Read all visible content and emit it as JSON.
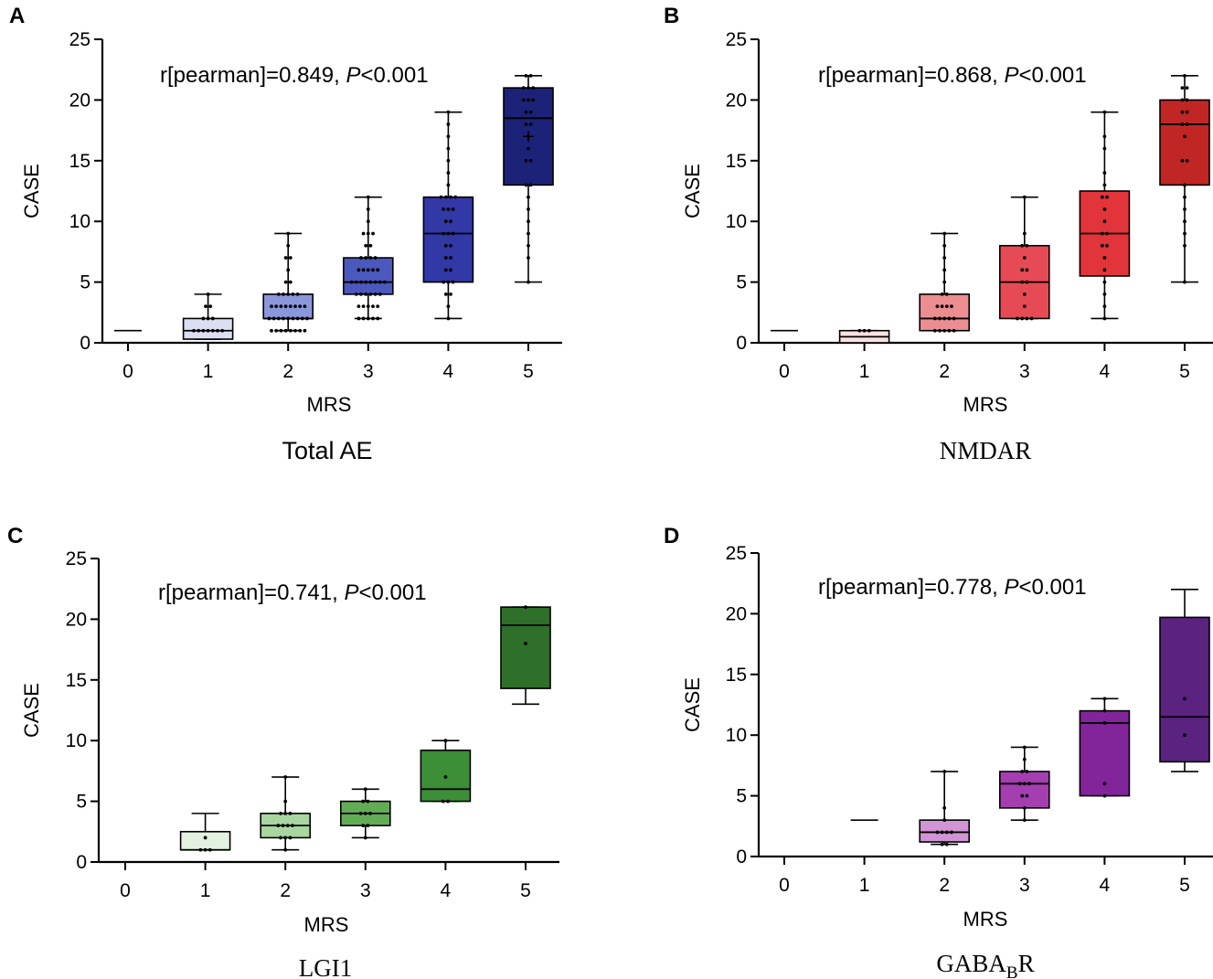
{
  "chart_data": [
    {
      "panel": "A",
      "type": "box",
      "title": "Total AE",
      "xlabel": "MRS",
      "ylabel": "CASE",
      "ylim": [
        0,
        25
      ],
      "yticks": [
        0,
        5,
        10,
        15,
        20,
        25
      ],
      "categories": [
        "0",
        "1",
        "2",
        "3",
        "4",
        "5"
      ],
      "annotation": {
        "r_label": "r[pearman]=0.849,",
        "p_symbol": "P",
        "p_value": "<0.001"
      },
      "boxes": [
        {
          "category": "0",
          "min": 1,
          "q1": 1,
          "median": 1,
          "q3": 1,
          "max": 1,
          "points": [],
          "mean": null
        },
        {
          "category": "1",
          "min": 0.3,
          "q1": 0.3,
          "median": 1,
          "q3": 2,
          "max": 4,
          "points": [
            1,
            1,
            1,
            1,
            1,
            1,
            1,
            2,
            2,
            2,
            3,
            3,
            4
          ],
          "mean": null
        },
        {
          "category": "2",
          "min": 1,
          "q1": 2,
          "median": 2,
          "q3": 4,
          "max": 9,
          "points": [
            1,
            1,
            1,
            1,
            1,
            1,
            1,
            1,
            2,
            2,
            2,
            2,
            2,
            2,
            2,
            2,
            2,
            3,
            3,
            3,
            3,
            3,
            3,
            3,
            3,
            4,
            4,
            4,
            4,
            4,
            5,
            5,
            6,
            7,
            7,
            8,
            9
          ],
          "mean": null
        },
        {
          "category": "3",
          "min": 2,
          "q1": 4,
          "median": 5,
          "q3": 7,
          "max": 12,
          "points": [
            2,
            2,
            2,
            2,
            2,
            3,
            3,
            3,
            3,
            3,
            4,
            4,
            4,
            4,
            4,
            4,
            5,
            5,
            5,
            5,
            5,
            5,
            5,
            5,
            6,
            6,
            6,
            6,
            6,
            7,
            7,
            7,
            7,
            8,
            8,
            9,
            9,
            9,
            10,
            11,
            12
          ],
          "mean": null
        },
        {
          "category": "4",
          "min": 2,
          "q1": 5,
          "median": 9,
          "q3": 12,
          "max": 19,
          "points": [
            2,
            3,
            4,
            4,
            5,
            5,
            5,
            6,
            6,
            7,
            7,
            8,
            8,
            9,
            9,
            9,
            10,
            10,
            11,
            11,
            11,
            12,
            12,
            12,
            12,
            13,
            14,
            15,
            16,
            17,
            18,
            19
          ],
          "mean": null
        },
        {
          "category": "5",
          "min": 5,
          "q1": 13,
          "median": 18.5,
          "q3": 21,
          "max": 22,
          "points": [
            5,
            7,
            8,
            9,
            10,
            11,
            12,
            13,
            13,
            15,
            15,
            16,
            17,
            18,
            18,
            19,
            19,
            20,
            20,
            20,
            21,
            21,
            21,
            22,
            22
          ],
          "mean": 17
        }
      ]
    },
    {
      "panel": "B",
      "type": "box",
      "title": "NMDAR",
      "xlabel": "MRS",
      "ylabel": "CASE",
      "ylim": [
        0,
        25
      ],
      "yticks": [
        0,
        5,
        10,
        15,
        20,
        25
      ],
      "categories": [
        "0",
        "1",
        "2",
        "3",
        "4",
        "5"
      ],
      "annotation": {
        "r_label": "r[pearman]=0.868,",
        "p_symbol": "P",
        "p_value": "<0.001"
      },
      "boxes": [
        {
          "category": "0",
          "min": 1,
          "q1": 1,
          "median": 1,
          "q3": 1,
          "max": 1,
          "points": [],
          "mean": null
        },
        {
          "category": "1",
          "min": 0,
          "q1": 0,
          "median": 0.5,
          "q3": 1,
          "max": 1,
          "points": [
            1,
            1,
            1
          ],
          "mean": null
        },
        {
          "category": "2",
          "min": 1,
          "q1": 1,
          "median": 2,
          "q3": 4,
          "max": 9,
          "points": [
            1,
            1,
            1,
            1,
            1,
            2,
            2,
            2,
            2,
            2,
            3,
            3,
            3,
            3,
            4,
            4,
            5,
            6,
            7,
            8,
            9
          ],
          "mean": null
        },
        {
          "category": "3",
          "min": 2,
          "q1": 2,
          "median": 5,
          "q3": 8,
          "max": 12,
          "points": [
            2,
            2,
            2,
            2,
            3,
            4,
            5,
            5,
            6,
            6,
            7,
            8,
            8,
            9,
            12
          ],
          "mean": null
        },
        {
          "category": "4",
          "min": 2,
          "q1": 5.5,
          "median": 9,
          "q3": 12.5,
          "max": 19,
          "points": [
            2,
            3,
            4,
            5,
            6,
            7,
            8,
            8,
            9,
            9,
            10,
            11,
            12,
            12,
            13,
            14,
            16,
            17,
            19
          ],
          "mean": null
        },
        {
          "category": "5",
          "min": 5,
          "q1": 13,
          "median": 18,
          "q3": 20,
          "max": 22,
          "points": [
            5,
            8,
            9,
            10,
            11,
            12,
            13,
            15,
            15,
            17,
            18,
            18,
            19,
            19,
            20,
            20,
            21,
            21,
            22
          ],
          "mean": null
        }
      ]
    },
    {
      "panel": "C",
      "type": "box",
      "title": "LGI1",
      "xlabel": "MRS",
      "ylabel": "CASE",
      "ylim": [
        0,
        25
      ],
      "yticks": [
        0,
        5,
        10,
        15,
        20,
        25
      ],
      "categories": [
        "0",
        "1",
        "2",
        "3",
        "4",
        "5"
      ],
      "annotation": {
        "r_label": "r[pearman]=0.741,",
        "p_symbol": "P",
        "p_value": "<0.001"
      },
      "boxes": [
        {
          "category": "1",
          "min": 1,
          "q1": 1,
          "median": 1,
          "q3": 2.5,
          "max": 4,
          "points": [
            1,
            1,
            1,
            2
          ],
          "mean": null
        },
        {
          "category": "2",
          "min": 1,
          "q1": 2,
          "median": 3,
          "q3": 4,
          "max": 7,
          "points": [
            1,
            2,
            2,
            2,
            3,
            3,
            3,
            3,
            4,
            4,
            4,
            5,
            7
          ],
          "mean": null
        },
        {
          "category": "3",
          "min": 2,
          "q1": 3,
          "median": 4,
          "q3": 5,
          "max": 6,
          "points": [
            2,
            3,
            3,
            4,
            4,
            4,
            5,
            5,
            6
          ],
          "mean": null
        },
        {
          "category": "4",
          "min": 5,
          "q1": 5,
          "median": 6,
          "q3": 9.2,
          "max": 10,
          "points": [
            5,
            5,
            7,
            10
          ],
          "mean": null
        },
        {
          "category": "5",
          "min": 13,
          "q1": 14.3,
          "median": 19.5,
          "q3": 21,
          "max": 21,
          "points": [
            18,
            21
          ],
          "mean": null
        }
      ]
    },
    {
      "panel": "D",
      "type": "box",
      "title": "GABA",
      "title_subscript": "B",
      "title_suffix": "R",
      "xlabel": "MRS",
      "ylabel": "CASE",
      "ylim": [
        0,
        25
      ],
      "yticks": [
        0,
        5,
        10,
        15,
        20,
        25
      ],
      "categories": [
        "0",
        "1",
        "2",
        "3",
        "4",
        "5"
      ],
      "annotation": {
        "r_label": "r[pearman]=0.778,",
        "p_symbol": "P",
        "p_value": "<0.001"
      },
      "boxes": [
        {
          "category": "1",
          "min": 3,
          "q1": 3,
          "median": 3,
          "q3": 3,
          "max": 3,
          "points": [],
          "mean": null
        },
        {
          "category": "2",
          "min": 1,
          "q1": 1.2,
          "median": 2,
          "q3": 3,
          "max": 7,
          "points": [
            1,
            1,
            2,
            2,
            2,
            2,
            3,
            4,
            7
          ],
          "mean": null
        },
        {
          "category": "3",
          "min": 3,
          "q1": 4,
          "median": 6,
          "q3": 7,
          "max": 9,
          "points": [
            3,
            4,
            5,
            5,
            6,
            6,
            6,
            7,
            7,
            8,
            9
          ],
          "mean": null
        },
        {
          "category": "4",
          "min": 5,
          "q1": 5,
          "median": 11,
          "q3": 12,
          "max": 13,
          "points": [
            5,
            6,
            11,
            12,
            13
          ],
          "mean": null
        },
        {
          "category": "5",
          "min": 7,
          "q1": 7.8,
          "median": 11.5,
          "q3": 19.7,
          "max": 22,
          "points": [
            10,
            13
          ],
          "mean": null
        }
      ]
    }
  ],
  "palettes": [
    [
      "#dcdff2",
      "#8b97db",
      "#4b58be",
      "#3238a6",
      "#1c2277"
    ],
    [
      "#f8e1e3",
      "#ec8d91",
      "#e64b55",
      "#e2343b",
      "#c02624"
    ],
    [
      "#e3f2e0",
      "#a8d5a0",
      "#62ac55",
      "#3c8f37",
      "#2e6f2a"
    ],
    [
      "#eed8ef",
      "#d194d4",
      "#a53eb0",
      "#82249a",
      "#5a237f"
    ]
  ],
  "colors": {
    "axis": "#000000",
    "point": "#000000"
  }
}
